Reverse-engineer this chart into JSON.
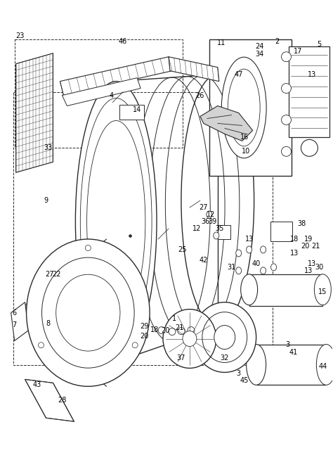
{
  "background_color": "#ffffff",
  "line_color": "#2a2a2a",
  "label_color": "#000000",
  "fig_width": 4.74,
  "fig_height": 6.54,
  "dpi": 100
}
